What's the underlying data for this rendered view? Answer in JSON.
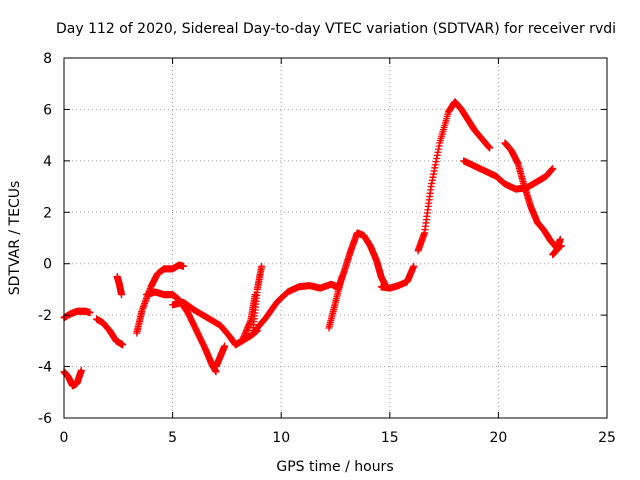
{
  "chart_data": {
    "type": "scatter",
    "title": "Day 112 of 2020, Sidereal Day-to-day VTEC variation (SDTVAR) for receiver rvdi",
    "xlabel": "GPS time / hours",
    "ylabel": "SDTVAR / TECUs",
    "xlim": [
      0,
      25
    ],
    "ylim": [
      -6,
      8
    ],
    "xticks": [
      0,
      5,
      10,
      15,
      20,
      25
    ],
    "yticks": [
      -6,
      -4,
      -2,
      0,
      2,
      4,
      6,
      8
    ],
    "grid": true,
    "marker": "+",
    "series_color": "#ff0000",
    "series": [
      {
        "name": "arc-a",
        "x": [
          0.0,
          0.2,
          0.4,
          0.6,
          0.8
        ],
        "y": [
          -4.2,
          -4.4,
          -4.75,
          -4.65,
          -4.15
        ]
      },
      {
        "name": "arc-b",
        "x": [
          0.0,
          0.3,
          0.6,
          1.0,
          1.2
        ],
        "y": [
          -2.1,
          -1.95,
          -1.85,
          -1.85,
          -1.9
        ]
      },
      {
        "name": "arc-c",
        "x": [
          1.5,
          1.8,
          2.1,
          2.4,
          2.6,
          2.7
        ],
        "y": [
          -2.15,
          -2.3,
          -2.6,
          -3.0,
          -3.1,
          -3.15
        ]
      },
      {
        "name": "arc-d",
        "x": [
          2.45,
          2.55,
          2.65
        ],
        "y": [
          -0.5,
          -0.8,
          -1.2
        ]
      },
      {
        "name": "arc-e",
        "x": [
          3.35,
          3.6,
          4.0,
          4.3,
          4.6,
          5.0,
          5.3,
          5.5
        ],
        "y": [
          -2.7,
          -1.8,
          -0.9,
          -0.4,
          -0.2,
          -0.2,
          -0.05,
          -0.1
        ]
      },
      {
        "name": "arc-f",
        "x": [
          3.8,
          4.2,
          4.6,
          5.0,
          5.3,
          5.7,
          6.1,
          6.5,
          6.8,
          7.0
        ],
        "y": [
          -1.2,
          -1.1,
          -1.2,
          -1.2,
          -1.4,
          -1.9,
          -2.6,
          -3.3,
          -3.9,
          -4.2
        ]
      },
      {
        "name": "arc-g",
        "x": [
          7.0,
          7.2,
          7.4
        ],
        "y": [
          -4.0,
          -3.6,
          -3.2
        ]
      },
      {
        "name": "arc-h",
        "x": [
          5.0,
          5.5,
          6.0,
          6.6,
          7.2,
          7.6,
          7.9,
          8.2,
          8.6,
          8.9
        ],
        "y": [
          -1.6,
          -1.5,
          -1.8,
          -2.1,
          -2.4,
          -2.8,
          -3.15,
          -3.0,
          -2.8,
          -2.6
        ]
      },
      {
        "name": "arc-i",
        "x": [
          8.2,
          8.6,
          8.8
        ],
        "y": [
          -3.0,
          -2.2,
          -1.2
        ]
      },
      {
        "name": "arc-j",
        "x": [
          8.7,
          8.9,
          9.1
        ],
        "y": [
          -2.6,
          -1.0,
          -0.1
        ]
      },
      {
        "name": "arc-k",
        "x": [
          8.8,
          9.3,
          9.8,
          10.3,
          10.8,
          11.3,
          11.8,
          12.3,
          12.6
        ],
        "y": [
          -2.6,
          -2.1,
          -1.5,
          -1.1,
          -0.9,
          -0.85,
          -0.95,
          -0.8,
          -0.9
        ]
      },
      {
        "name": "arc-l",
        "x": [
          12.2,
          12.5,
          12.8
        ],
        "y": [
          -2.5,
          -1.5,
          -0.5
        ]
      },
      {
        "name": "arc-m",
        "x": [
          12.6,
          12.9,
          13.2,
          13.5,
          13.8,
          14.1,
          14.4,
          14.6,
          14.8
        ],
        "y": [
          -1.0,
          -0.3,
          0.5,
          1.2,
          1.1,
          0.7,
          0.1,
          -0.5,
          -0.85
        ]
      },
      {
        "name": "arc-n",
        "x": [
          14.6,
          15.0,
          15.4,
          15.8,
          16.1
        ],
        "y": [
          -0.9,
          -0.95,
          -0.85,
          -0.7,
          -0.1
        ]
      },
      {
        "name": "arc-o",
        "x": [
          16.3,
          16.6,
          16.9,
          17.3,
          17.7,
          18.0,
          18.3,
          18.6,
          18.9,
          19.3,
          19.6
        ],
        "y": [
          0.5,
          1.2,
          3.0,
          4.7,
          5.9,
          6.3,
          6.0,
          5.6,
          5.2,
          4.8,
          4.5
        ]
      },
      {
        "name": "arc-p",
        "x": [
          18.4,
          18.9,
          19.4,
          19.9,
          20.3,
          20.8,
          21.3,
          21.8,
          22.2,
          22.5
        ],
        "y": [
          4.0,
          3.8,
          3.6,
          3.4,
          3.1,
          2.9,
          2.95,
          3.2,
          3.4,
          3.7
        ]
      },
      {
        "name": "arc-q",
        "x": [
          20.3,
          20.6,
          20.9,
          21.2,
          21.5,
          21.8,
          22.1,
          22.4,
          22.7,
          22.9
        ],
        "y": [
          4.7,
          4.4,
          3.9,
          3.0,
          2.2,
          1.6,
          1.3,
          0.9,
          0.6,
          0.7
        ]
      },
      {
        "name": "arc-r",
        "x": [
          22.5,
          22.7,
          22.85
        ],
        "y": [
          0.35,
          0.55,
          0.95
        ]
      }
    ]
  }
}
